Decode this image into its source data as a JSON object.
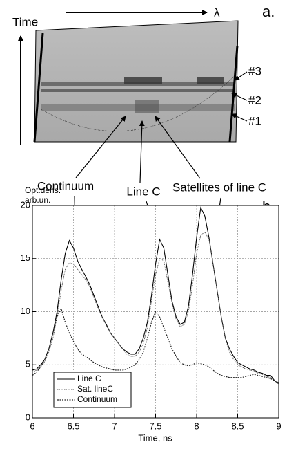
{
  "panel_a": {
    "label": "a.",
    "time_label": "Time",
    "lambda_label": "λ",
    "markers": [
      "#3",
      "#2",
      "#1"
    ]
  },
  "chart_data": {
    "type": "line",
    "panel_label": "b.",
    "y_label": [
      "Opt.dens.",
      "arb.un."
    ],
    "x_label": "Time, ns",
    "annotations": [
      "Continuum",
      "Line C",
      "Satellites of line C"
    ],
    "xlim": [
      6,
      9
    ],
    "xticks": [
      6,
      6.5,
      7,
      7.5,
      8,
      8.5,
      9
    ],
    "ylim": [
      0,
      20
    ],
    "yticks": [
      0,
      5,
      10,
      15,
      20
    ],
    "grid": true,
    "legend": "lower left",
    "x": [
      6,
      6.05,
      6.1,
      6.15,
      6.2,
      6.25,
      6.3,
      6.35,
      6.4,
      6.45,
      6.5,
      6.55,
      6.6,
      6.65,
      6.7,
      6.75,
      6.8,
      6.85,
      6.9,
      6.95,
      7,
      7.05,
      7.1,
      7.15,
      7.2,
      7.25,
      7.3,
      7.35,
      7.4,
      7.45,
      7.5,
      7.55,
      7.6,
      7.65,
      7.7,
      7.75,
      7.8,
      7.85,
      7.9,
      7.95,
      8,
      8.05,
      8.1,
      8.15,
      8.2,
      8.25,
      8.3,
      8.35,
      8.4,
      8.45,
      8.5,
      8.55,
      8.6,
      8.65,
      8.7,
      8.75,
      8.8,
      8.85,
      8.9,
      8.95,
      9
    ],
    "series": [
      {
        "name": "Line C",
        "color": "#000000",
        "dash": "none",
        "width": 1.1,
        "values": [
          4.5,
          4.6,
          5.0,
          5.5,
          6.5,
          8.0,
          10.0,
          13.0,
          15.5,
          16.7,
          16.0,
          14.8,
          14.0,
          13.3,
          12.5,
          11.5,
          10.5,
          9.5,
          8.8,
          8.0,
          7.5,
          7.0,
          6.5,
          6.2,
          6.0,
          6.0,
          6.5,
          7.5,
          9.0,
          11.5,
          14.5,
          16.8,
          16.0,
          13.5,
          11.0,
          9.5,
          8.8,
          9.0,
          10.5,
          13.5,
          17.0,
          19.8,
          19.0,
          17.0,
          14.5,
          12.0,
          9.5,
          7.5,
          6.5,
          5.8,
          5.2,
          5.0,
          4.8,
          4.6,
          4.5,
          4.3,
          4.2,
          4.0,
          4.0,
          3.5,
          3.2
        ]
      },
      {
        "name": "Sat. lineC",
        "color": "#555555",
        "dash": "1.5 1",
        "width": 0.9,
        "values": [
          4.3,
          4.5,
          4.8,
          5.3,
          6.2,
          7.5,
          9.5,
          12.0,
          14.0,
          14.6,
          14.5,
          14.0,
          13.5,
          13.0,
          12.3,
          11.3,
          10.3,
          9.5,
          8.7,
          8.0,
          7.5,
          7.0,
          6.5,
          6.0,
          5.8,
          5.8,
          6.2,
          7.0,
          8.5,
          11.0,
          13.5,
          15.0,
          14.8,
          12.8,
          10.8,
          9.3,
          8.6,
          8.8,
          10.0,
          12.5,
          15.5,
          17.2,
          17.5,
          16.8,
          14.5,
          12.0,
          9.5,
          7.5,
          6.2,
          5.5,
          5.0,
          4.8,
          4.6,
          4.5,
          4.4,
          4.2,
          4.1,
          3.9,
          3.8,
          3.5,
          3.2
        ]
      },
      {
        "name": "Continuum",
        "color": "#222222",
        "dash": "2 1.5",
        "width": 1.2,
        "values": [
          4.0,
          4.3,
          4.8,
          5.5,
          6.5,
          8.0,
          9.5,
          10.3,
          9.0,
          8.0,
          7.2,
          6.5,
          6.0,
          5.8,
          5.5,
          5.2,
          5.0,
          4.8,
          4.7,
          4.6,
          4.5,
          4.5,
          4.5,
          4.6,
          4.8,
          5.0,
          5.5,
          6.2,
          7.5,
          9.0,
          10.0,
          9.5,
          8.5,
          7.5,
          6.5,
          5.8,
          5.2,
          5.0,
          4.9,
          5.0,
          5.2,
          5.1,
          5.0,
          4.8,
          4.5,
          4.2,
          4.0,
          3.9,
          3.8,
          3.8,
          3.8,
          3.8,
          3.9,
          4.0,
          4.1,
          4.0,
          3.9,
          3.8,
          3.7,
          3.5,
          3.3
        ]
      }
    ]
  }
}
